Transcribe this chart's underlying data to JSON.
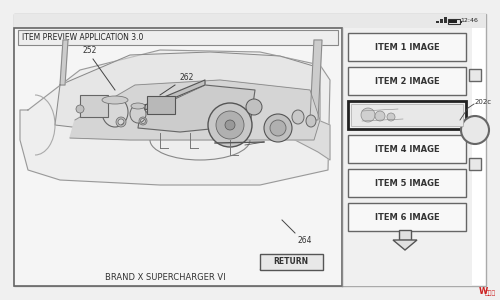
{
  "bg_color": "#d8d8d8",
  "device_fill": "#f2f2f2",
  "device_border": "#888888",
  "screen_fill": "#ffffff",
  "panel_fill": "#f8f8f8",
  "title_text": "ITEM PREVIEW APPLICATION 3.0",
  "brand_text": "BRAND X SUPERCHARGER VI",
  "return_text": "RETURN",
  "status_text": "12:46",
  "label_252": "252",
  "label_262": "262",
  "label_264": "264",
  "label_202c": "202c",
  "item_labels": [
    "ITEM 1 IMAGE",
    "ITEM 2 IMAGE",
    "",
    "ITEM 4 IMAGE",
    "ITEM 5 IMAGE",
    "ITEM 6 IMAGE"
  ],
  "watermark": "W 映维网"
}
